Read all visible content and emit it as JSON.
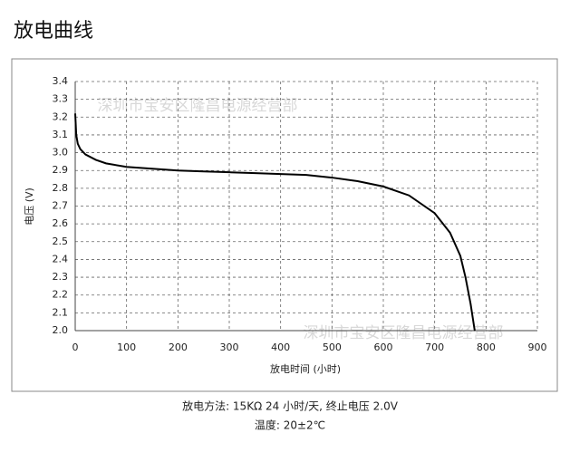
{
  "chart_data": {
    "type": "line",
    "title": "放电曲线",
    "x_label": "放电时间 (小时)",
    "y_label": "电压 (V)",
    "x": [
      0,
      2,
      5,
      10,
      20,
      40,
      60,
      100,
      150,
      200,
      250,
      300,
      350,
      400,
      450,
      500,
      550,
      600,
      650,
      700,
      730,
      750,
      760,
      770,
      778
    ],
    "values": [
      3.22,
      3.1,
      3.05,
      3.02,
      2.99,
      2.96,
      2.94,
      2.92,
      2.91,
      2.9,
      2.895,
      2.89,
      2.885,
      2.88,
      2.875,
      2.86,
      2.84,
      2.81,
      2.76,
      2.66,
      2.55,
      2.42,
      2.3,
      2.15,
      2.0
    ],
    "color": "#000000",
    "xlim": [
      0,
      900
    ],
    "xticks": [
      0,
      100,
      200,
      300,
      400,
      500,
      600,
      700,
      800,
      900
    ],
    "ylim": [
      2,
      3.4
    ],
    "yticks": [
      {
        "value": 2,
        "label": "2.0"
      },
      2.1,
      2.2,
      2.3,
      2.4,
      2.5,
      2.6,
      2.7,
      2.8,
      2.9,
      {
        "value": 3,
        "label": "3.0"
      },
      3.1,
      3.2,
      3.3,
      3.4
    ],
    "grid": true,
    "watermarks": [
      "深圳市宝安区隆昌电源经营部",
      "深圳市宝安区隆昌电源经营部"
    ],
    "notes": [
      "放电方法: 15KΩ 24 小时/天, 终止电压 2.0V",
      "温度: 20±2℃"
    ]
  }
}
